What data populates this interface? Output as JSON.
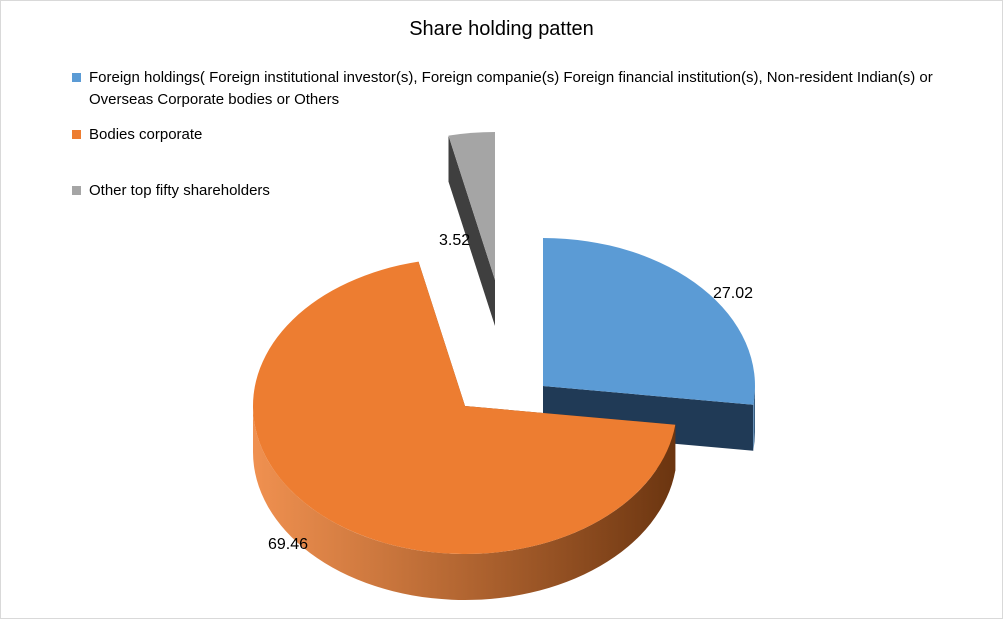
{
  "chart_data": {
    "type": "pie",
    "title": "Share holding patten",
    "categories": [
      "Foreign holdings( Foreign institutional investor(s), Foreign companie(s) Foreign financial institution(s),  Non-resident Indian(s) or Overseas Corporate bodies or Others",
      "Bodies corporate",
      "Other top fifty shareholders"
    ],
    "values": [
      27.02,
      69.46,
      3.52
    ],
    "data_labels": [
      "27.02",
      "69.46",
      "3.52"
    ],
    "colors": [
      "#5b9bd5",
      "#ed7d31",
      "#a5a5a5"
    ],
    "side_colors": [
      "#203a56",
      "#6b3510",
      "#3f3f3f"
    ],
    "legend_position": "top-left",
    "style": "3d-exploded"
  }
}
